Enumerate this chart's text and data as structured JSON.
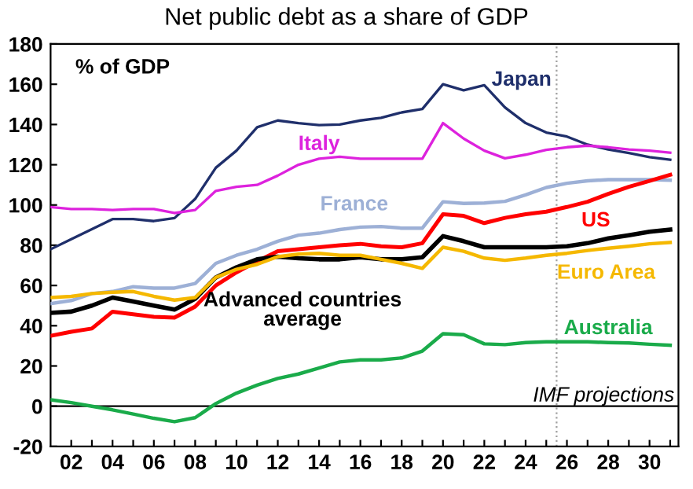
{
  "chart_data": {
    "type": "line",
    "title": "Net public debt as a share of GDP",
    "x": [
      2001,
      2002,
      2003,
      2004,
      2005,
      2006,
      2007,
      2008,
      2009,
      2010,
      2011,
      2012,
      2013,
      2014,
      2015,
      2016,
      2017,
      2018,
      2019,
      2020,
      2021,
      2022,
      2023,
      2024,
      2025,
      2026,
      2027,
      2028,
      2029,
      2030,
      2031
    ],
    "series": [
      {
        "name": "Japan",
        "color": "#1f2f6b",
        "values": [
          78,
          83,
          88,
          93,
          93,
          92,
          93.5,
          103,
          118.5,
          127,
          138.6,
          142,
          140.7,
          139.7,
          140,
          142,
          143.3,
          146,
          147.7,
          160,
          157,
          159.5,
          148.5,
          140.7,
          136,
          134,
          130,
          127.6,
          125.8,
          123.8,
          122.5
        ]
      },
      {
        "name": "Italy",
        "color": "#dd22dd",
        "values": [
          99,
          98,
          98,
          97.5,
          98,
          98,
          96,
          97.5,
          107,
          109,
          110,
          114.6,
          120,
          123,
          124,
          123,
          123,
          123,
          123,
          140.7,
          133,
          127,
          123.2,
          125,
          127.4,
          128.7,
          129.5,
          128.7,
          127.6,
          127,
          126
        ]
      },
      {
        "name": "France",
        "color": "#9db0d6",
        "values": [
          51,
          52.5,
          56,
          57,
          59.4,
          58.7,
          58.7,
          61,
          71,
          75,
          78,
          82,
          85,
          86,
          87.8,
          89,
          89.3,
          88.5,
          88.5,
          101.6,
          100.8,
          101,
          101.8,
          105,
          108.7,
          110.8,
          112,
          112.6,
          112.6,
          112.6,
          112.3
        ]
      },
      {
        "name": "US",
        "color": "#ff0000",
        "values": [
          35,
          37,
          38.6,
          47,
          45.7,
          44.4,
          44,
          49.5,
          60,
          66.5,
          72,
          77,
          78,
          79,
          80,
          80.7,
          79.5,
          79,
          81,
          95.4,
          94.6,
          91,
          93.6,
          95.4,
          96.7,
          99,
          101.6,
          105.5,
          109,
          112,
          115
        ]
      },
      {
        "name": "Advanced countries\naverage",
        "color": "#000000",
        "values": [
          46.4,
          47,
          50,
          54,
          52,
          50,
          48,
          53.4,
          64,
          69,
          73,
          74.3,
          73.5,
          73,
          73,
          74,
          73,
          73,
          74,
          84.5,
          82,
          79,
          79,
          79,
          79,
          79.5,
          81,
          83.4,
          85,
          86.7,
          87.8
        ]
      },
      {
        "name": "Euro Area",
        "color": "#f5b800",
        "values": [
          54,
          54.6,
          56,
          56.6,
          57,
          54.6,
          52.7,
          54,
          64,
          68,
          70.5,
          74.3,
          75.6,
          76,
          75,
          75,
          73,
          71,
          68.5,
          79,
          77,
          73.6,
          72.5,
          73.6,
          75,
          76,
          77.4,
          78.5,
          79.5,
          80.7,
          81.4
        ]
      },
      {
        "name": "Australia",
        "color": "#1aab4a",
        "values": [
          3.2,
          1.8,
          0,
          -1.8,
          -3.9,
          -6,
          -7.7,
          -5.7,
          1.3,
          6.5,
          10.5,
          13.8,
          16,
          19,
          22,
          23,
          23,
          24,
          27.4,
          36,
          35.5,
          31,
          30.6,
          31.6,
          32,
          32,
          32,
          31.6,
          31.4,
          30.8,
          30.3
        ]
      }
    ],
    "xlim": [
      2001,
      2031.4
    ],
    "xticks": [
      {
        "value": 2002,
        "label": "02"
      },
      {
        "value": 2003,
        "label": null
      },
      {
        "value": 2004,
        "label": "04"
      },
      {
        "value": 2005,
        "label": null
      },
      {
        "value": 2006,
        "label": "06"
      },
      {
        "value": 2007,
        "label": null
      },
      {
        "value": 2008,
        "label": "08"
      },
      {
        "value": 2009,
        "label": null
      },
      {
        "value": 2010,
        "label": "10"
      },
      {
        "value": 2011,
        "label": null
      },
      {
        "value": 2012,
        "label": "12"
      },
      {
        "value": 2013,
        "label": null
      },
      {
        "value": 2014,
        "label": "14"
      },
      {
        "value": 2015,
        "label": null
      },
      {
        "value": 2016,
        "label": "16"
      },
      {
        "value": 2017,
        "label": null
      },
      {
        "value": 2018,
        "label": "18"
      },
      {
        "value": 2019,
        "label": null
      },
      {
        "value": 2020,
        "label": "20"
      },
      {
        "value": 2021,
        "label": null
      },
      {
        "value": 2022,
        "label": "22"
      },
      {
        "value": 2023,
        "label": null
      },
      {
        "value": 2024,
        "label": "24"
      },
      {
        "value": 2025,
        "label": null
      },
      {
        "value": 2026,
        "label": "26"
      },
      {
        "value": 2027,
        "label": null
      },
      {
        "value": 2028,
        "label": "28"
      },
      {
        "value": 2029,
        "label": null
      },
      {
        "value": 2030,
        "label": "30"
      },
      {
        "value": 2031,
        "label": null
      }
    ],
    "ylim": [
      -20,
      180
    ],
    "yticks": [
      {
        "value": -20,
        "label": "-20"
      },
      0,
      20,
      40,
      60,
      80,
      100,
      120,
      140,
      160,
      180
    ],
    "ref_lines": [
      {
        "axis": "x",
        "value": 2025.5,
        "color": "#a0a0a0",
        "line_style": "dotted"
      },
      {
        "axis": "y",
        "value": 0,
        "color": "#000000",
        "line_style": "solid"
      }
    ],
    "annotations": [
      "% of GDP",
      "IMF projections"
    ],
    "grid": false,
    "legend": false,
    "marker": "none",
    "line_style": "solid"
  }
}
